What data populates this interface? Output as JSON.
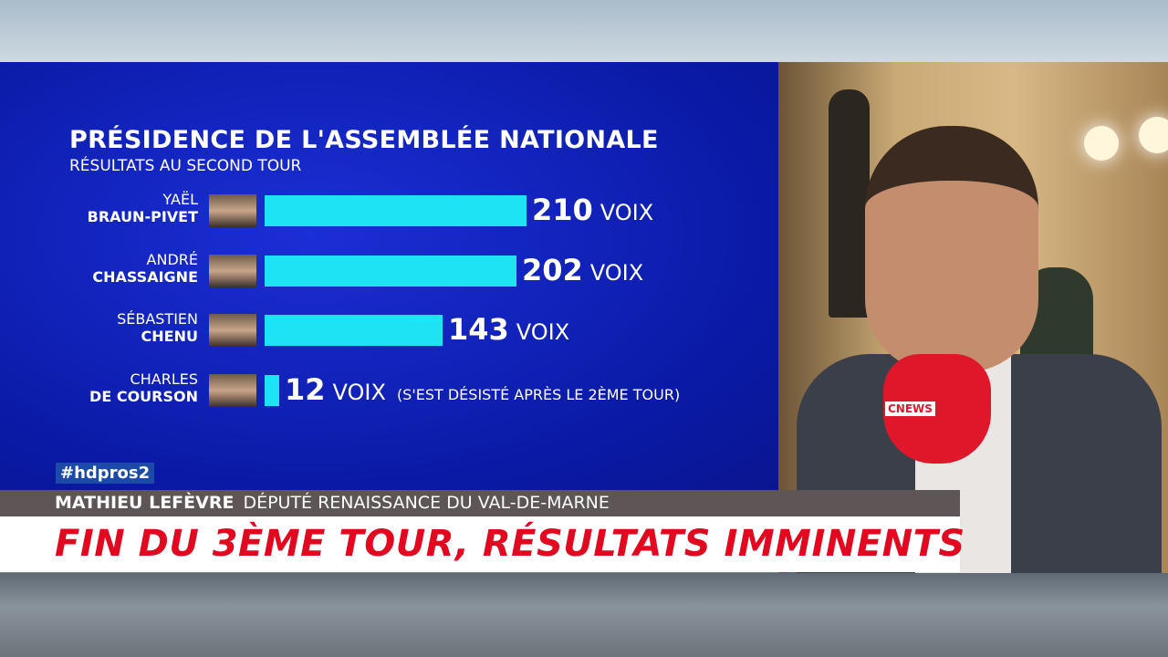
{
  "chart_data": {
    "type": "bar",
    "orientation": "horizontal",
    "title": "PRÉSIDENCE DE L'ASSEMBLÉE NATIONALE",
    "subtitle": "RÉSULTATS AU SECOND TOUR",
    "unit": "VOIX",
    "categories": [
      {
        "first": "YAËL",
        "last": "BRAUN-PIVET"
      },
      {
        "first": "ANDRÉ",
        "last": "CHASSAIGNE"
      },
      {
        "first": "SÉBASTIEN",
        "last": "CHENU"
      },
      {
        "first": "CHARLES",
        "last": "DE COURSON"
      }
    ],
    "values": [
      210,
      202,
      143,
      12
    ],
    "notes": [
      "",
      "",
      "",
      "(S'EST DÉSISTÉ APRÈS LE 2ÈME TOUR)"
    ],
    "bar_color": "#1de3f5"
  },
  "overlay": {
    "hashtag": "#hdpros2",
    "speaker_name": "MATHIEU LEFÈVRE",
    "speaker_title": "DÉPUTÉ RENAISSANCE DU VAL-DE-MARNE",
    "headline": "FIN DU 3ÈME TOUR, RÉSULTATS IMMINENTS",
    "mic_logo": "CNEWS",
    "headline_color": "#e1081f"
  }
}
